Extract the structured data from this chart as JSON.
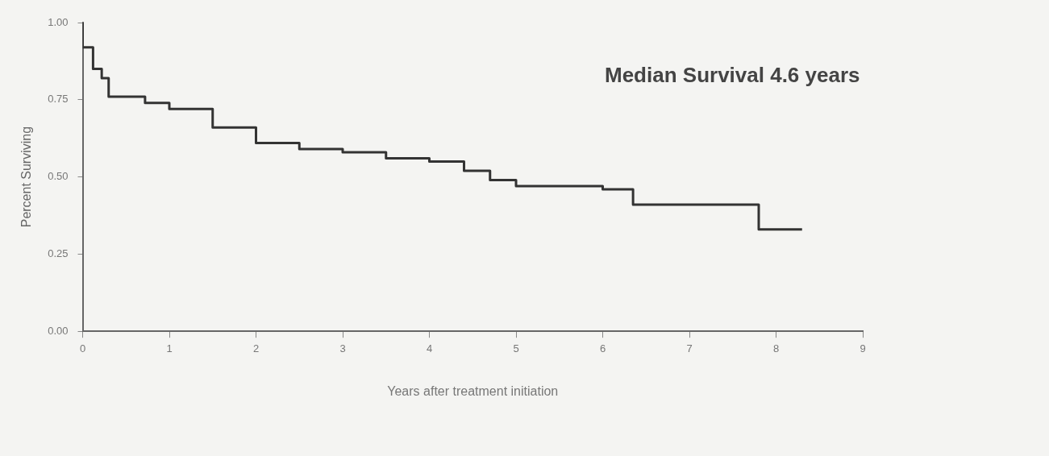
{
  "chart_data": {
    "type": "step",
    "xlabel": "Years after treatment initiation",
    "ylabel": "Percent Surviving",
    "annotations": [
      "Median Survival 4.6 years"
    ],
    "x": [
      0,
      0.12,
      0.22,
      0.3,
      0.72,
      1.0,
      1.5,
      2.0,
      2.5,
      3.0,
      3.5,
      4.0,
      4.4,
      4.7,
      5.0,
      5.6,
      6.0,
      6.35,
      6.5,
      7.8,
      7.85,
      8.3
    ],
    "series": [
      {
        "color": "#333333",
        "values": [
          1.0,
          0.92,
          0.85,
          0.82,
          0.76,
          0.74,
          0.72,
          0.66,
          0.61,
          0.59,
          0.58,
          0.56,
          0.55,
          0.52,
          0.49,
          0.47,
          0.47,
          0.46,
          0.41,
          0.41,
          0.33,
          0.33
        ]
      }
    ],
    "xlim": [
      0,
      9
    ],
    "xticks": [
      0,
      1,
      2,
      3,
      4,
      5,
      6,
      7,
      8,
      9
    ],
    "ylim": [
      0,
      1
    ],
    "yticks": [
      {
        "value": 0,
        "label": "0.00"
      },
      {
        "value": 0.25,
        "label": "0.25"
      },
      {
        "value": 0.5,
        "label": "0.50"
      },
      {
        "value": 0.75,
        "label": "0.75"
      },
      {
        "value": 1,
        "label": "1.00"
      }
    ],
    "grid": false,
    "legend": false,
    "marker": "none",
    "line_style": "solid"
  }
}
